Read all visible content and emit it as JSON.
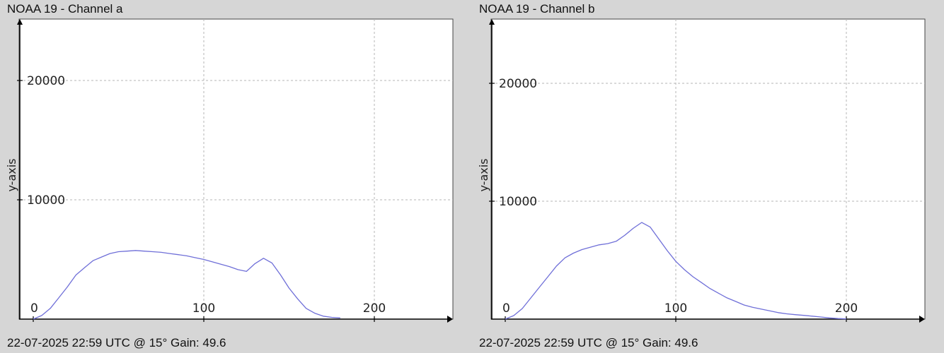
{
  "panels": [
    {
      "title": "NOAA 19 - Channel a",
      "footer": "22-07-2025 22:59 UTC @ 15° Gain: 49.6"
    },
    {
      "title": "NOAA 19 - Channel b",
      "footer": "22-07-2025 22:59 UTC @ 15° Gain: 49.6"
    }
  ],
  "colors": {
    "background": "#d6d6d6",
    "plot_bg": "#ffffff",
    "line": "#6f6fd8",
    "grid": "#b5b5b5",
    "axis": "#000000"
  },
  "chart_data": [
    {
      "type": "line",
      "title": "NOAA 19 - Channel a",
      "xlabel": "",
      "ylabel": "y-axis",
      "xlim": [
        -10,
        245
      ],
      "ylim": [
        0,
        25000
      ],
      "xticks": [
        0,
        100,
        200
      ],
      "yticks": [
        10000,
        20000
      ],
      "xtick_labels": [
        "0",
        "100",
        "200"
      ],
      "ytick_labels": [
        "10000",
        "20000"
      ],
      "grid": true,
      "series": [
        {
          "x": [
            0,
            5,
            10,
            15,
            20,
            25,
            30,
            35,
            40,
            45,
            50,
            55,
            60,
            65,
            70,
            75,
            80,
            85,
            90,
            95,
            100,
            105,
            110,
            115,
            120,
            125,
            130,
            135,
            140,
            145,
            150,
            155,
            160,
            165,
            170,
            175,
            180
          ],
          "y": [
            0,
            300,
            900,
            1800,
            2700,
            3700,
            4300,
            4900,
            5200,
            5500,
            5650,
            5700,
            5750,
            5700,
            5650,
            5600,
            5500,
            5400,
            5300,
            5150,
            5000,
            4800,
            4600,
            4400,
            4150,
            4000,
            4650,
            5100,
            4700,
            3700,
            2600,
            1700,
            900,
            500,
            250,
            150,
            100
          ]
        }
      ]
    },
    {
      "type": "line",
      "title": "NOAA 19 - Channel b",
      "xlabel": "",
      "ylabel": "y-axis",
      "xlim": [
        -10,
        245
      ],
      "ylim": [
        0,
        25000
      ],
      "xticks": [
        0,
        100,
        200
      ],
      "yticks": [
        10000,
        20000
      ],
      "xtick_labels": [
        "0",
        "100",
        "200"
      ],
      "ytick_labels": [
        "10000",
        "20000"
      ],
      "grid": true,
      "series": [
        {
          "x": [
            0,
            5,
            10,
            15,
            20,
            25,
            30,
            35,
            40,
            45,
            50,
            55,
            60,
            65,
            70,
            75,
            80,
            85,
            90,
            95,
            100,
            105,
            110,
            115,
            120,
            125,
            130,
            135,
            140,
            145,
            150,
            155,
            160,
            165,
            170,
            175,
            180,
            185,
            190,
            195,
            200
          ],
          "y": [
            0,
            300,
            900,
            1800,
            2700,
            3600,
            4500,
            5200,
            5600,
            5900,
            6100,
            6300,
            6400,
            6600,
            7100,
            7700,
            8200,
            7800,
            6800,
            5800,
            4900,
            4200,
            3600,
            3100,
            2600,
            2200,
            1800,
            1500,
            1200,
            1000,
            850,
            700,
            550,
            450,
            380,
            320,
            250,
            180,
            100,
            50,
            20
          ]
        }
      ]
    }
  ]
}
